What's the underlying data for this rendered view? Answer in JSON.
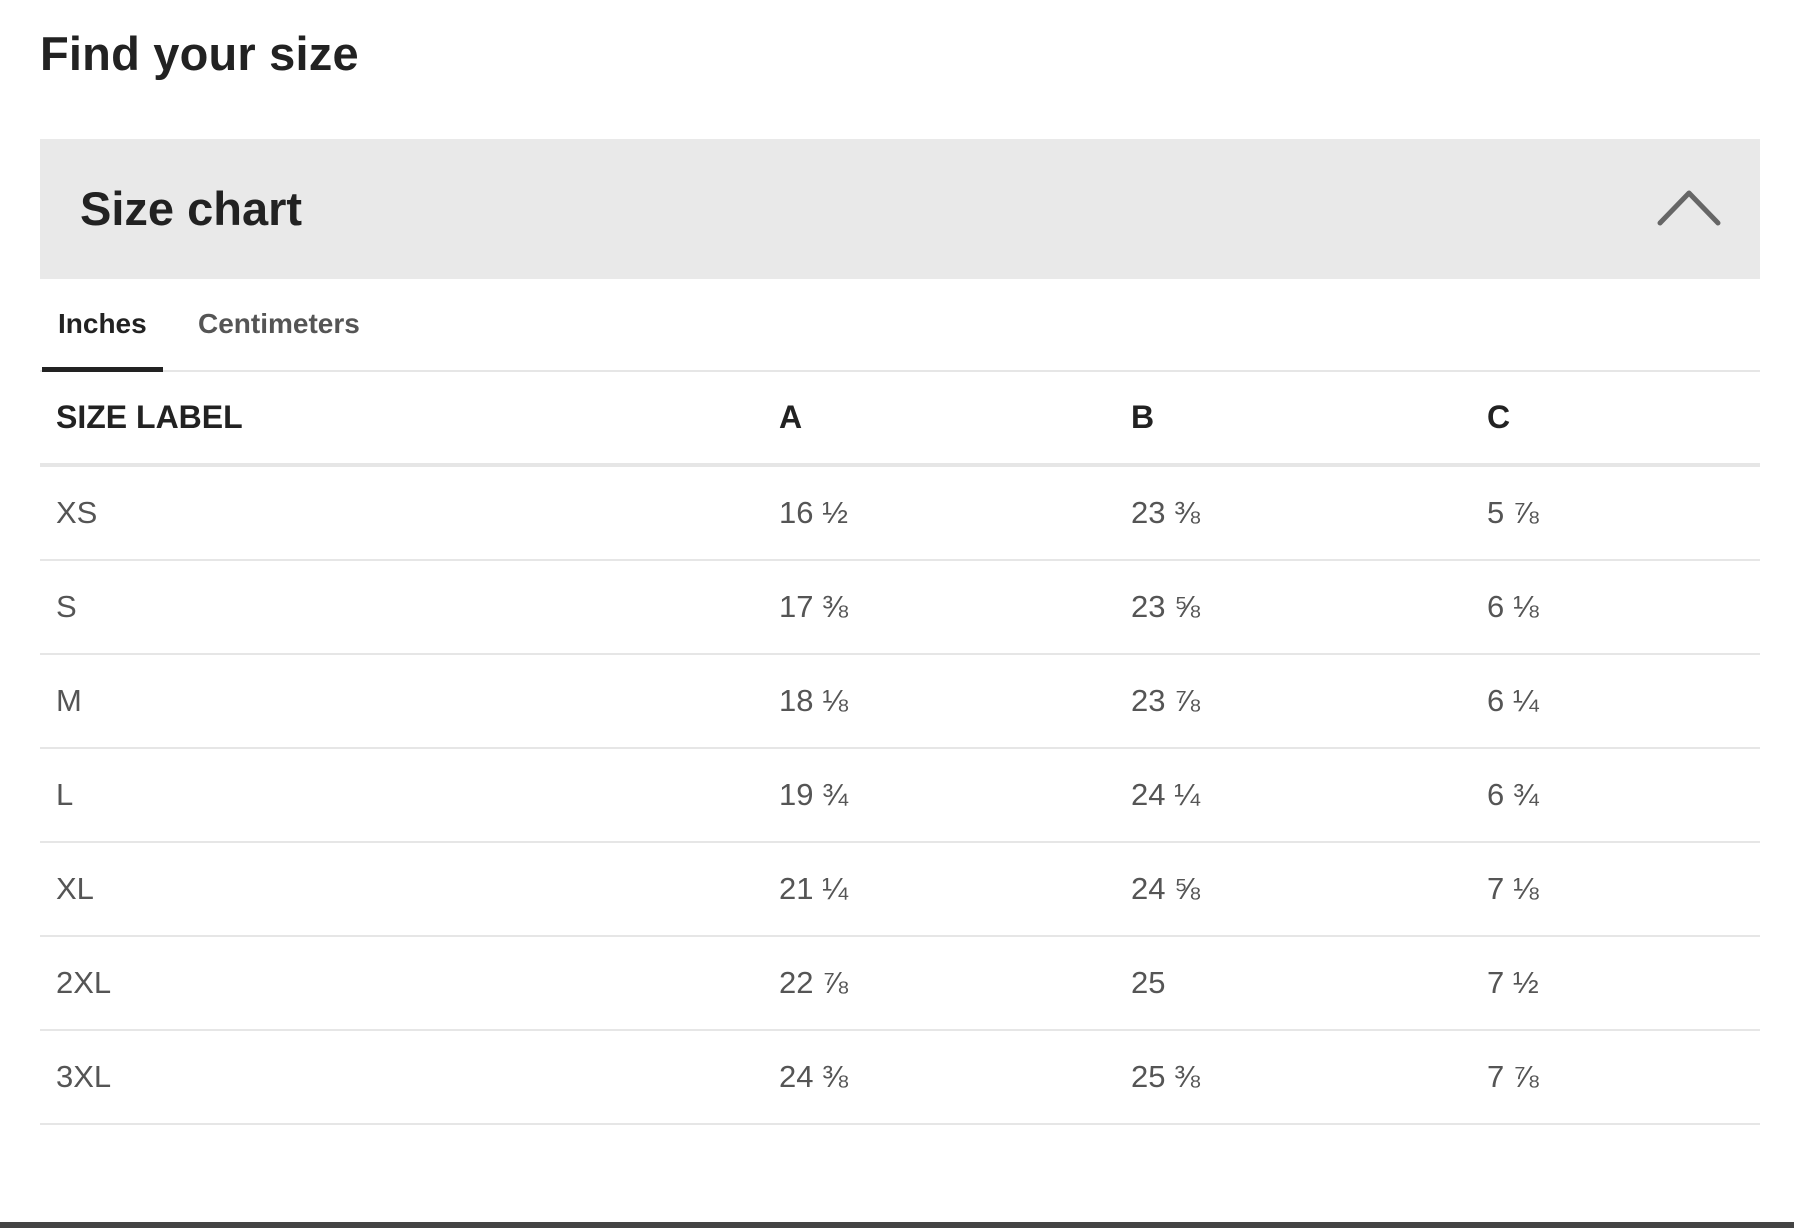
{
  "page": {
    "title": "Find your size"
  },
  "accordion": {
    "title": "Size chart",
    "toggle_icon": "chevron-up-icon",
    "header_bg": "#e9e9e9"
  },
  "tabs": [
    {
      "label": "Inches",
      "active": true
    },
    {
      "label": "Centimeters",
      "active": false
    }
  ],
  "table": {
    "headers": [
      "SIZE LABEL",
      "A",
      "B",
      "C"
    ],
    "rows": [
      [
        "XS",
        "16 ½",
        "23 ⅜",
        "5 ⅞"
      ],
      [
        "S",
        "17 ⅜",
        "23 ⅝",
        "6 ⅛"
      ],
      [
        "M",
        "18 ⅛",
        "23 ⅞",
        "6 ¼"
      ],
      [
        "L",
        "19 ¾",
        "24 ¼",
        "6 ¾"
      ],
      [
        "XL",
        "21 ¼",
        "24 ⅝",
        "7 ⅛"
      ],
      [
        "2XL",
        "22 ⅞",
        "25",
        "7 ½"
      ],
      [
        "3XL",
        "24 ⅜",
        "25 ⅜",
        "7 ⅞"
      ]
    ]
  }
}
